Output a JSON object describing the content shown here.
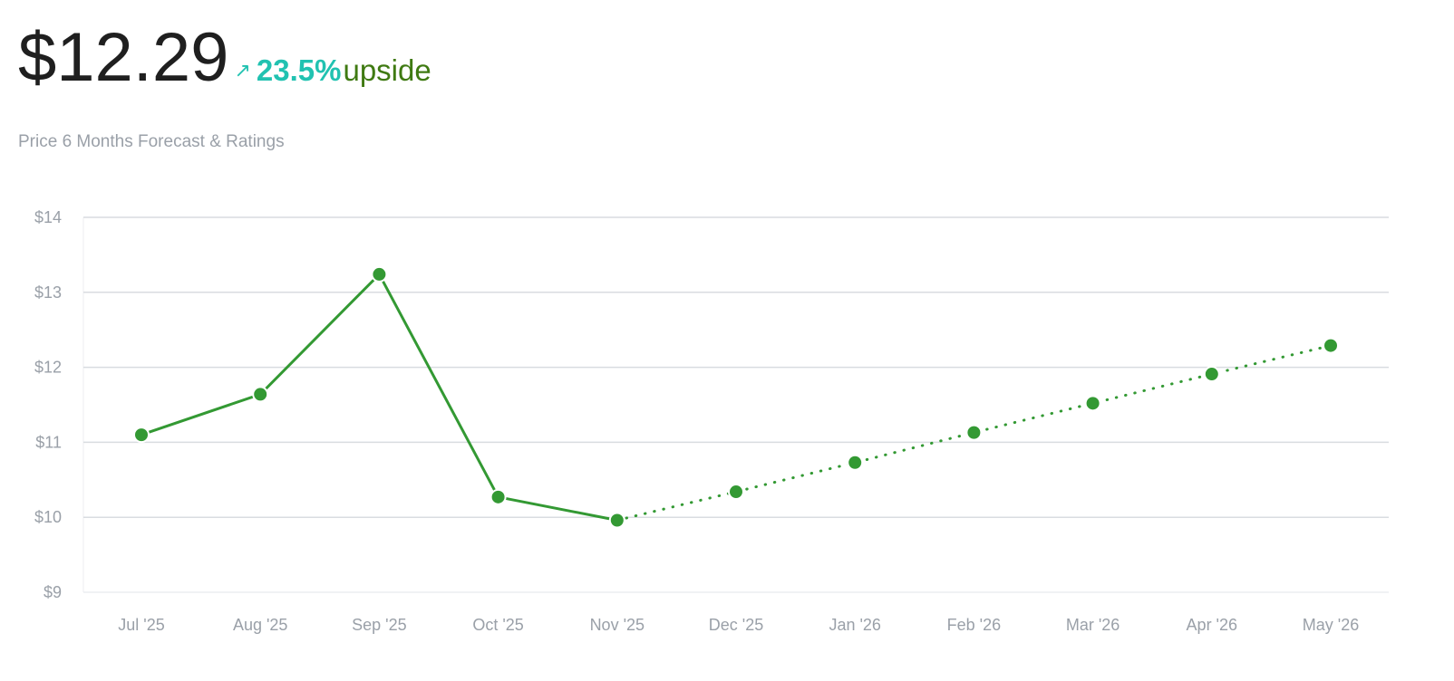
{
  "header": {
    "price": "$12.29",
    "arrow": "↗",
    "change_pct": "23.5%",
    "change_label": "upside",
    "subtitle": "Price 6 Months Forecast & Ratings"
  },
  "colors": {
    "line": "#339933",
    "upside_pct": "#21c2b1",
    "upside_text": "#3f7a12",
    "grid": "#d9dce0",
    "axis_text": "#9aa0a8"
  },
  "chart_data": {
    "type": "line",
    "title": "",
    "xlabel": "",
    "ylabel": "",
    "categories": [
      "Jul '25",
      "Aug '25",
      "Sep '25",
      "Oct '25",
      "Nov '25",
      "Dec '25",
      "Jan '26",
      "Feb '26",
      "Mar '26",
      "Apr '26",
      "May '26"
    ],
    "ylim": [
      9,
      14
    ],
    "yticks": [
      9,
      10,
      11,
      12,
      13,
      14
    ],
    "ytick_labels": [
      "$9",
      "$10",
      "$11",
      "$12",
      "$13",
      "$14"
    ],
    "grid": true,
    "series": [
      {
        "style": "solid",
        "values": [
          11.1,
          11.64,
          13.24,
          10.27,
          9.96,
          null,
          null,
          null,
          null,
          null,
          null
        ]
      },
      {
        "style": "dotted",
        "values": [
          null,
          null,
          null,
          null,
          9.96,
          10.34,
          10.73,
          11.13,
          11.52,
          11.91,
          12.29
        ]
      }
    ]
  }
}
